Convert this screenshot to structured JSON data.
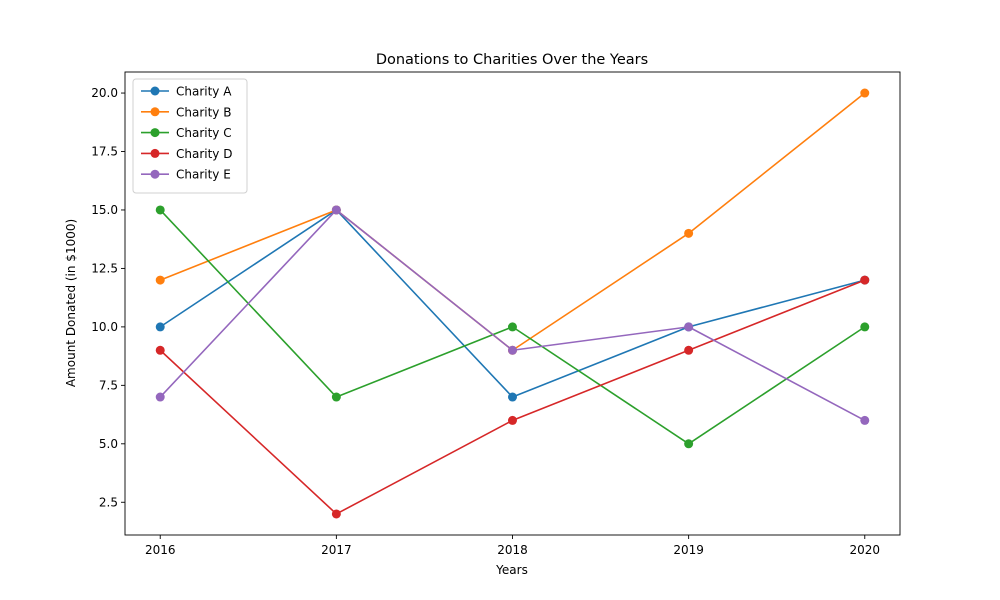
{
  "chart_data": {
    "type": "line",
    "title": "Donations to Charities Over the Years",
    "xlabel": "Years",
    "ylabel": "Amount Donated (in $1000)",
    "x": [
      2016,
      2017,
      2018,
      2019,
      2020
    ],
    "x_tick_labels": [
      "2016",
      "2017",
      "2018",
      "2019",
      "2020"
    ],
    "ylim": [
      1.1,
      20.9
    ],
    "y_ticks": [
      2.5,
      5.0,
      7.5,
      10.0,
      12.5,
      15.0,
      17.5,
      20.0
    ],
    "y_tick_labels": [
      "2.5",
      "5.0",
      "7.5",
      "10.0",
      "12.5",
      "15.0",
      "17.5",
      "20.0"
    ],
    "grid": false,
    "legend_position": "upper-left",
    "series": [
      {
        "name": "Charity A",
        "color": "#1f77b4",
        "values": [
          10,
          15,
          7,
          10,
          12
        ]
      },
      {
        "name": "Charity B",
        "color": "#ff7f0e",
        "values": [
          12,
          15,
          9,
          14,
          20
        ]
      },
      {
        "name": "Charity C",
        "color": "#2ca02c",
        "values": [
          15,
          7,
          10,
          5,
          10
        ]
      },
      {
        "name": "Charity D",
        "color": "#d62728",
        "values": [
          9,
          2,
          6,
          9,
          12
        ]
      },
      {
        "name": "Charity E",
        "color": "#9467bd",
        "values": [
          7,
          15,
          9,
          10,
          6
        ]
      }
    ]
  }
}
